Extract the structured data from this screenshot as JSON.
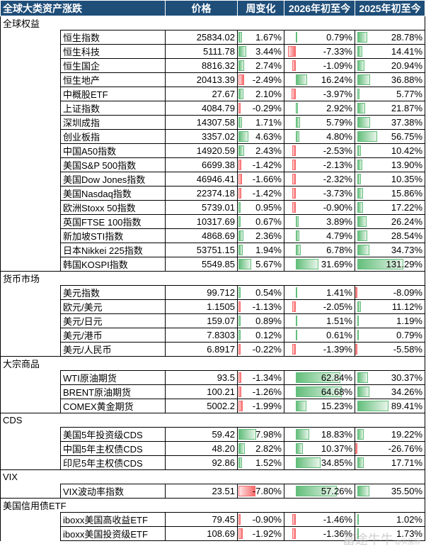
{
  "header": {
    "title": "全球大类资产涨跌",
    "columns": [
      "价格",
      "周变化",
      "2026年初至今",
      "2025年初至今"
    ]
  },
  "colors": {
    "header_bg": "#1f4e79",
    "bar_positive": "#63be7b",
    "bar_negative": "#f8696b"
  },
  "bar_scale": {
    "week": 7.98,
    "ytd26": 64.68,
    "ytd25": 131.29
  },
  "sections": [
    {
      "name": "全球权益",
      "rows": [
        {
          "name": "恒生指数",
          "price": "25834.02",
          "week": "1.67%",
          "ytd26": "0.79%",
          "ytd25": "28.78%"
        },
        {
          "name": "恒生科技",
          "price": "5111.78",
          "week": "3.44%",
          "ytd26": "-7.33%",
          "ytd25": "14.41%"
        },
        {
          "name": "恒生国企",
          "price": "8816.32",
          "week": "2.74%",
          "ytd26": "-1.09%",
          "ytd25": "20.94%"
        },
        {
          "name": "恒生地产",
          "price": "20413.39",
          "week": "-2.49%",
          "ytd26": "16.24%",
          "ytd25": "36.88%"
        },
        {
          "name": "中概股ETF",
          "price": "27.67",
          "week": "2.10%",
          "ytd26": "-3.97%",
          "ytd25": "5.77%"
        },
        {
          "name": "上证指数",
          "price": "4084.79",
          "week": "-0.29%",
          "ytd26": "2.92%",
          "ytd25": "21.87%"
        },
        {
          "name": "深圳成指",
          "price": "14307.58",
          "week": "1.71%",
          "ytd26": "5.79%",
          "ytd25": "37.38%"
        },
        {
          "name": "创业板指",
          "price": "3357.02",
          "week": "4.63%",
          "ytd26": "4.80%",
          "ytd25": "56.75%"
        },
        {
          "name": "中国A50指数",
          "price": "14920.59",
          "week": "2.43%",
          "ytd26": "-2.53%",
          "ytd25": "10.42%"
        },
        {
          "name": "美国S&P 500指数",
          "price": "6699.38",
          "week": "-1.42%",
          "ytd26": "-2.13%",
          "ytd25": "13.90%"
        },
        {
          "name": "美国Dow Jones指数",
          "price": "46946.41",
          "week": "-1.66%",
          "ytd26": "-2.32%",
          "ytd25": "10.35%"
        },
        {
          "name": "美国Nasdaq指数",
          "price": "22374.18",
          "week": "-1.42%",
          "ytd26": "-3.73%",
          "ytd25": "15.86%"
        },
        {
          "name": "欧洲Stoxx 50指数",
          "price": "5739.01",
          "week": "0.95%",
          "ytd26": "-0.90%",
          "ytd25": "17.22%"
        },
        {
          "name": "英国FTSE 100指数",
          "price": "10317.69",
          "week": "0.67%",
          "ytd26": "3.89%",
          "ytd25": "26.24%"
        },
        {
          "name": "新加坡STI指数",
          "price": "4868.69",
          "week": "2.36%",
          "ytd26": "4.79%",
          "ytd25": "28.54%"
        },
        {
          "name": "日本Nikkei 225指数",
          "price": "53751.15",
          "week": "1.94%",
          "ytd26": "6.78%",
          "ytd25": "34.73%"
        },
        {
          "name": "韩国KOSPI指数",
          "price": "5549.85",
          "week": "5.67%",
          "ytd26": "31.69%",
          "ytd25": "131.29%"
        }
      ]
    },
    {
      "name": "货币市场",
      "rows": [
        {
          "name": "美元指数",
          "price": "99.712",
          "week": "0.54%",
          "ytd26": "1.41%",
          "ytd25": "-8.09%"
        },
        {
          "name": "欧元/美元",
          "price": "1.1505",
          "week": "-1.13%",
          "ytd26": "-2.05%",
          "ytd25": "11.12%"
        },
        {
          "name": "美元/日元",
          "price": "159.07",
          "week": "0.89%",
          "ytd26": "1.51%",
          "ytd25": "1.19%"
        },
        {
          "name": "美元/港币",
          "price": "7.8303",
          "week": "0.12%",
          "ytd26": "0.61%",
          "ytd25": "0.79%"
        },
        {
          "name": "美元/人民币",
          "price": "6.8917",
          "week": "-0.22%",
          "ytd26": "-1.39%",
          "ytd25": "-5.58%"
        }
      ]
    },
    {
      "name": "大宗商品",
      "rows": [
        {
          "name": "WTI原油期货",
          "price": "93.5",
          "week": "-1.34%",
          "ytd26": "62.84%",
          "ytd25": "30.37%"
        },
        {
          "name": "BRENT原油期货",
          "price": "100.21",
          "week": "-1.26%",
          "ytd26": "64.68%",
          "ytd25": "34.26%"
        },
        {
          "name": "COMEX黄金期货",
          "price": "5002.2",
          "week": "-1.99%",
          "ytd26": "15.23%",
          "ytd25": "89.41%"
        }
      ]
    },
    {
      "name": "CDS",
      "rows": [
        {
          "name": "美国5年投资级CDS",
          "price": "59.42",
          "week": "7.98%",
          "ytd26": "18.83%",
          "ytd25": "19.22%"
        },
        {
          "name": "中国5年主权债CDS",
          "price": "48.20",
          "week": "2.82%",
          "ytd26": "10.37%",
          "ytd25": "-26.76%"
        },
        {
          "name": "印尼5年主权债CDS",
          "price": "92.86",
          "week": "1.52%",
          "ytd26": "34.85%",
          "ytd25": "17.71%"
        }
      ]
    },
    {
      "name": "VIX",
      "rows": [
        {
          "name": "VIX波动率指数",
          "price": "23.51",
          "week": "-7.80%",
          "ytd26": "57.26%",
          "ytd25": "35.50%"
        }
      ]
    },
    {
      "name": "美国信用债ETF",
      "rows": [
        {
          "name": "iboxx美国高收益ETF",
          "price": "79.45",
          "week": "-0.90%",
          "ytd26": "-1.46%",
          "ytd25": "1.02%"
        },
        {
          "name": "iboxx美国投资级ETF",
          "price": "108.69",
          "week": "-1.92%",
          "ytd26": "-1.36%",
          "ytd25": "1.73%"
        }
      ]
    }
  ],
  "watermark": {
    "text": "富途牛牛",
    "sub": "@实国际"
  }
}
